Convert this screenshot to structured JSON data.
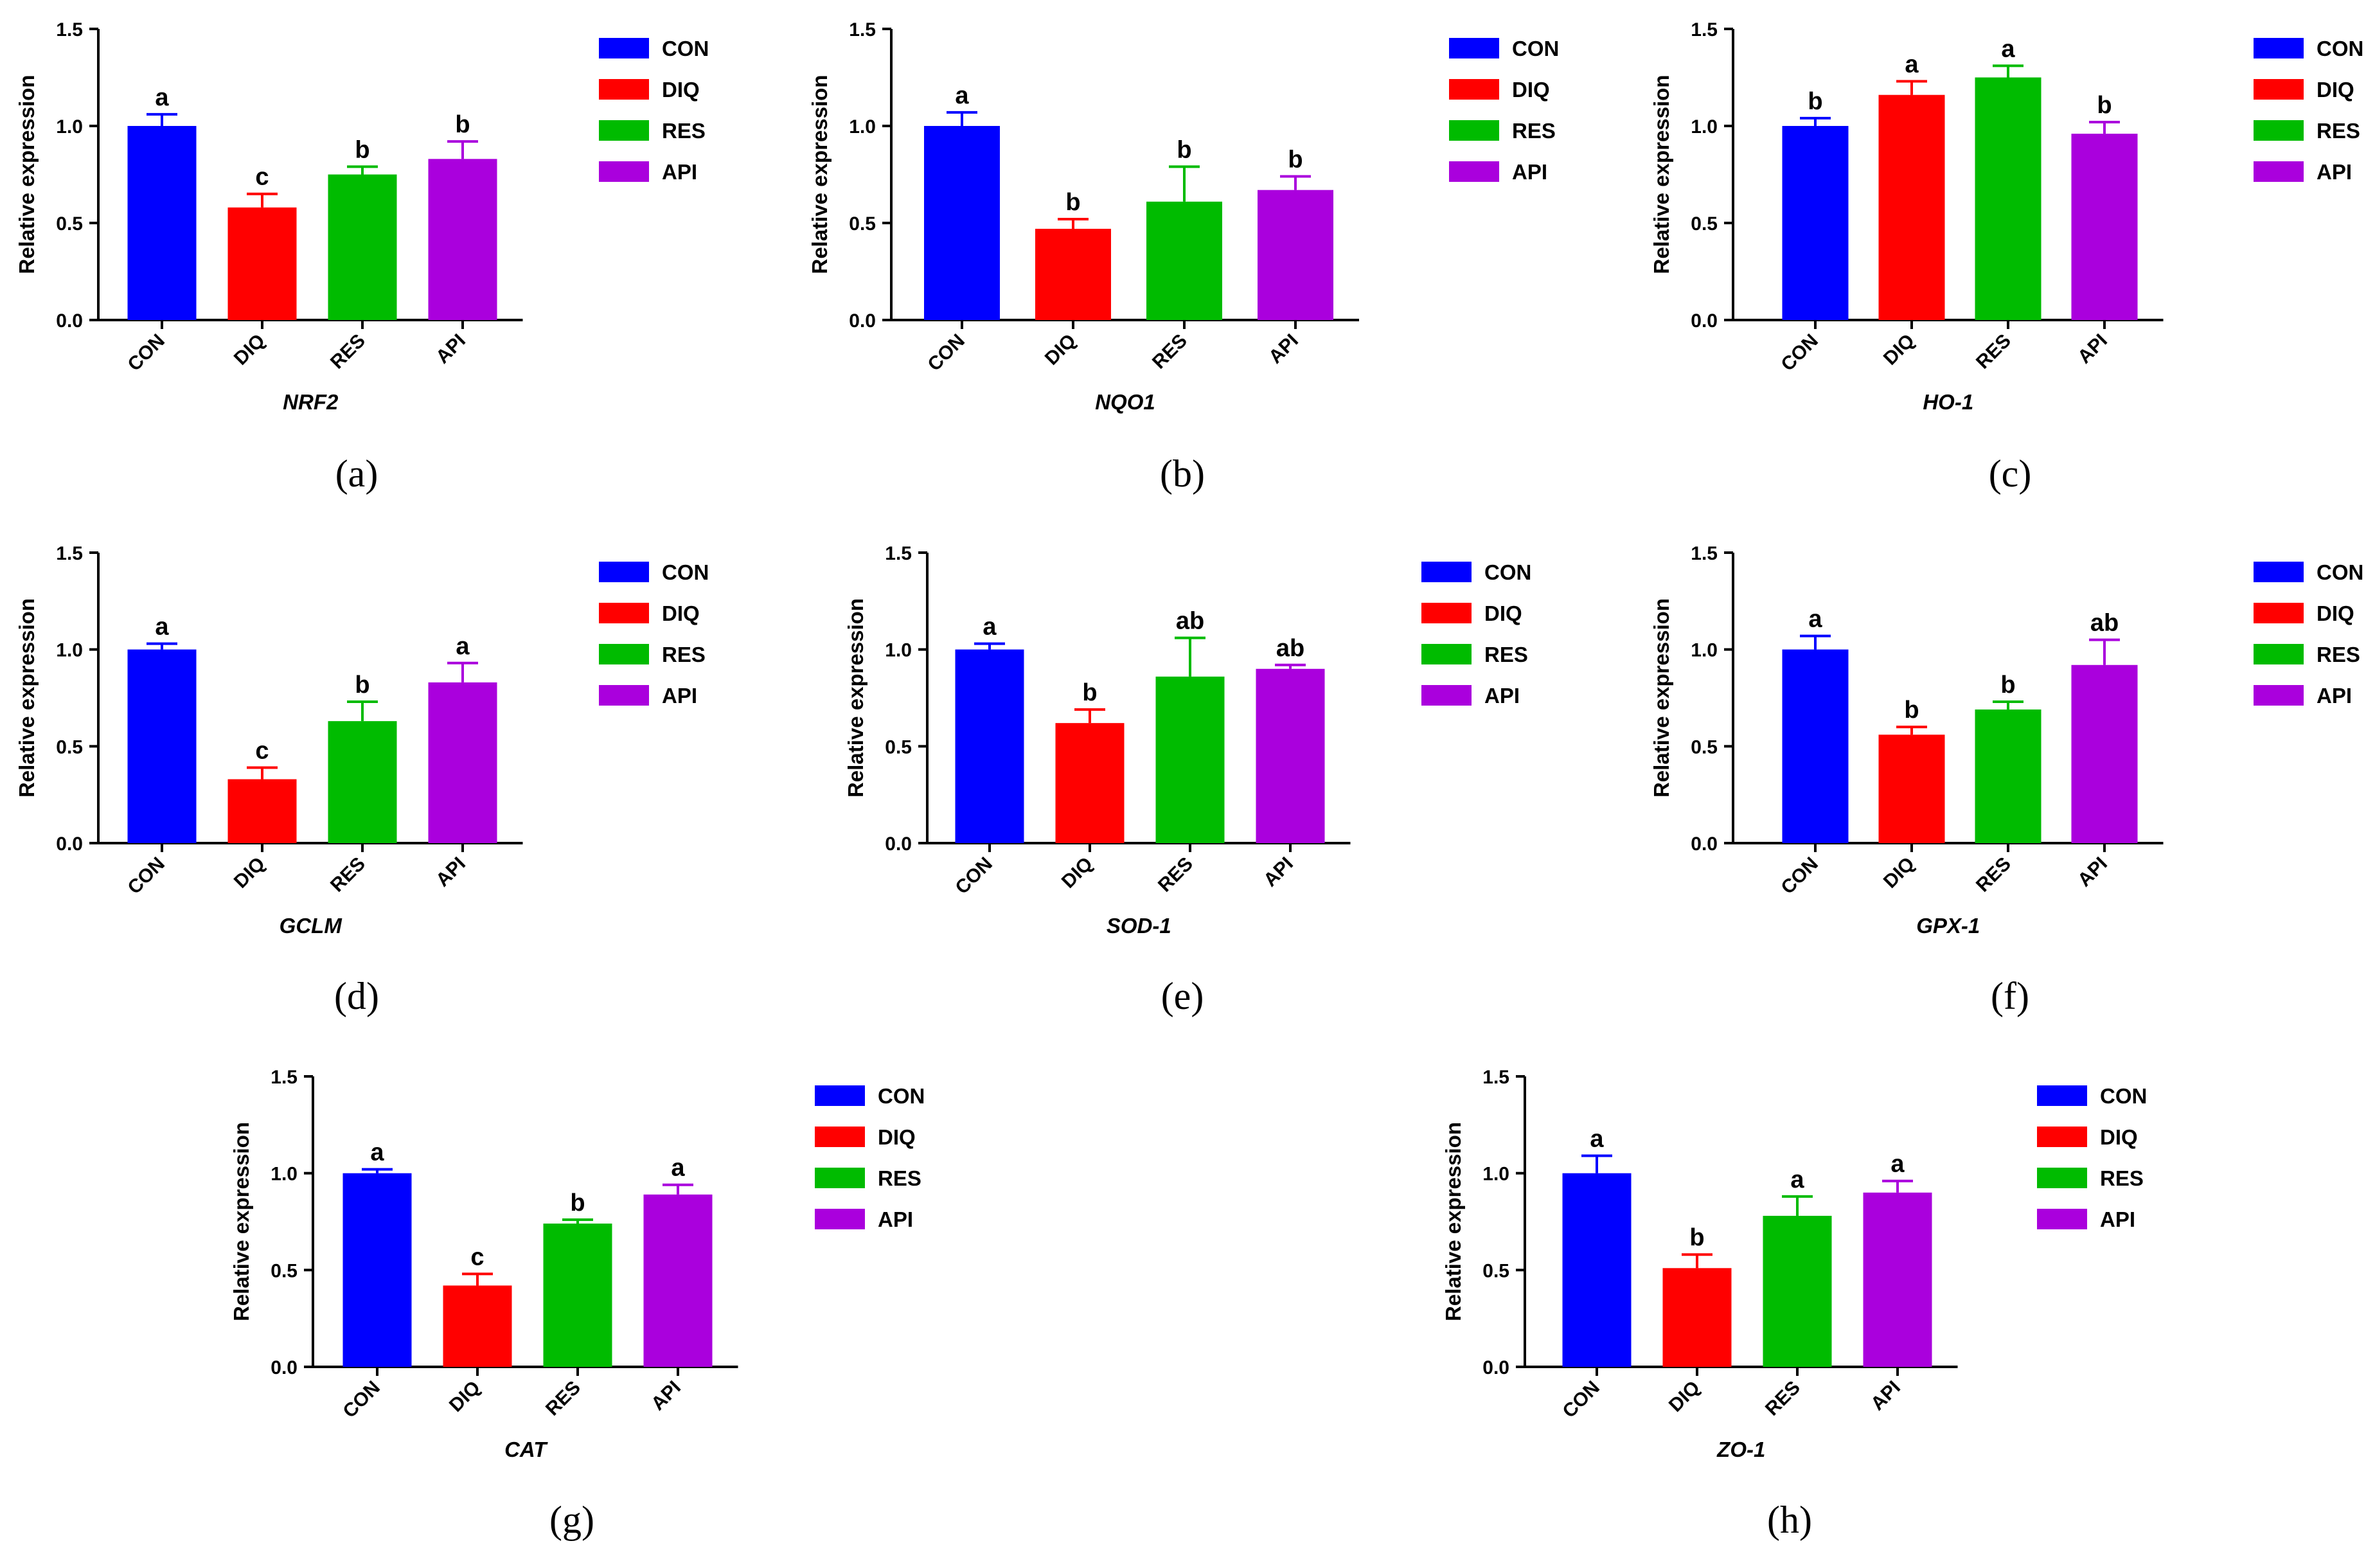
{
  "chart_data": [
    {
      "panel": "(a)",
      "type": "bar",
      "xlabel": "NRF2",
      "ylabel": "Relative expression",
      "ylim": [
        0,
        1.5
      ],
      "yticks": [
        "0.0",
        "0.5",
        "1.0",
        "1.5"
      ],
      "categories": [
        "CON",
        "DIQ",
        "RES",
        "API"
      ],
      "values": [
        1.0,
        0.58,
        0.75,
        0.83
      ],
      "errors": [
        0.06,
        0.07,
        0.04,
        0.09
      ],
      "significance": [
        "a",
        "c",
        "b",
        "b"
      ]
    },
    {
      "panel": "(b)",
      "type": "bar",
      "xlabel": "NQO1",
      "ylabel": "Relative expression",
      "ylim": [
        0,
        1.5
      ],
      "yticks": [
        "0.0",
        "0.5",
        "1.0",
        "1.5"
      ],
      "categories": [
        "CON",
        "DIQ",
        "RES",
        "API"
      ],
      "values": [
        1.0,
        0.47,
        0.61,
        0.67
      ],
      "errors": [
        0.07,
        0.05,
        0.18,
        0.07
      ],
      "significance": [
        "a",
        "b",
        "b",
        "b"
      ]
    },
    {
      "panel": "(c)",
      "type": "bar",
      "xlabel": "HO-1",
      "ylabel": "Relative expression",
      "ylim": [
        0,
        1.5
      ],
      "yticks": [
        "0.0",
        "0.5",
        "1.0",
        "1.5"
      ],
      "categories": [
        "CON",
        "DIQ",
        "RES",
        "API"
      ],
      "values": [
        1.0,
        1.16,
        1.25,
        0.96
      ],
      "errors": [
        0.04,
        0.07,
        0.06,
        0.06
      ],
      "significance": [
        "b",
        "a",
        "a",
        "b"
      ]
    },
    {
      "panel": "(d)",
      "type": "bar",
      "xlabel": "GCLM",
      "ylabel": "Relative expression",
      "ylim": [
        0,
        1.5
      ],
      "yticks": [
        "0.0",
        "0.5",
        "1.0",
        "1.5"
      ],
      "categories": [
        "CON",
        "DIQ",
        "RES",
        "API"
      ],
      "values": [
        1.0,
        0.33,
        0.63,
        0.83
      ],
      "errors": [
        0.03,
        0.06,
        0.1,
        0.1
      ],
      "significance": [
        "a",
        "c",
        "b",
        "a"
      ]
    },
    {
      "panel": "(e)",
      "type": "bar",
      "xlabel": "SOD-1",
      "ylabel": "Relative expression",
      "ylim": [
        0,
        1.5
      ],
      "yticks": [
        "0.0",
        "0.5",
        "1.0",
        "1.5"
      ],
      "categories": [
        "CON",
        "DIQ",
        "RES",
        "API"
      ],
      "values": [
        1.0,
        0.62,
        0.86,
        0.9
      ],
      "errors": [
        0.03,
        0.07,
        0.2,
        0.02
      ],
      "significance": [
        "a",
        "b",
        "ab",
        "ab"
      ]
    },
    {
      "panel": "(f)",
      "type": "bar",
      "xlabel": "GPX-1",
      "ylabel": "Relative expression",
      "ylim": [
        0,
        1.5
      ],
      "yticks": [
        "0.0",
        "0.5",
        "1.0",
        "1.5"
      ],
      "categories": [
        "CON",
        "DIQ",
        "RES",
        "API"
      ],
      "values": [
        1.0,
        0.56,
        0.69,
        0.92
      ],
      "errors": [
        0.07,
        0.04,
        0.04,
        0.13
      ],
      "significance": [
        "a",
        "b",
        "b",
        "ab"
      ]
    },
    {
      "panel": "(g)",
      "type": "bar",
      "xlabel": "CAT",
      "ylabel": "Relative expression",
      "ylim": [
        0,
        1.5
      ],
      "yticks": [
        "0.0",
        "0.5",
        "1.0",
        "1.5"
      ],
      "categories": [
        "CON",
        "DIQ",
        "RES",
        "API"
      ],
      "values": [
        1.0,
        0.42,
        0.74,
        0.89
      ],
      "errors": [
        0.02,
        0.06,
        0.02,
        0.05
      ],
      "significance": [
        "a",
        "c",
        "b",
        "a"
      ]
    },
    {
      "panel": "(h)",
      "type": "bar",
      "xlabel": "ZO-1",
      "ylabel": "Relative expression",
      "ylim": [
        0,
        1.5
      ],
      "yticks": [
        "0.0",
        "0.5",
        "1.0",
        "1.5"
      ],
      "categories": [
        "CON",
        "DIQ",
        "RES",
        "API"
      ],
      "values": [
        1.0,
        0.51,
        0.78,
        0.9
      ],
      "errors": [
        0.09,
        0.07,
        0.1,
        0.06
      ],
      "significance": [
        "a",
        "b",
        "a",
        "a"
      ]
    }
  ],
  "legend": [
    {
      "label": "CON",
      "color": "#0000ff"
    },
    {
      "label": "DIQ",
      "color": "#ff0000"
    },
    {
      "label": "RES",
      "color": "#00bb00"
    },
    {
      "label": "API",
      "color": "#aa00dd"
    }
  ]
}
